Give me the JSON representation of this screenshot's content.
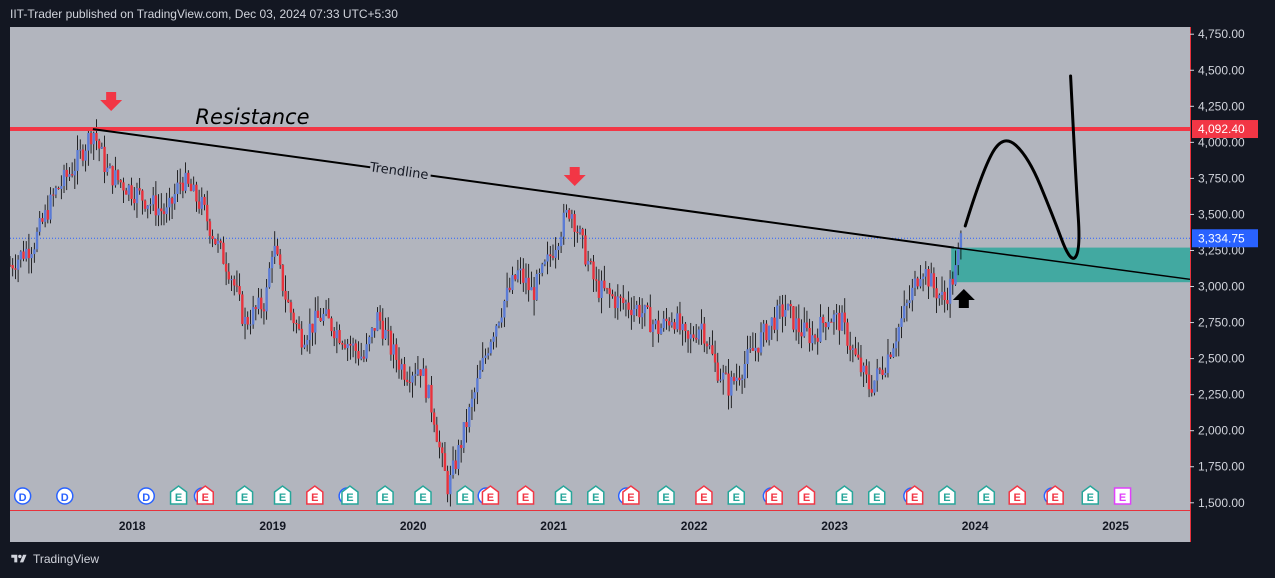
{
  "header": {
    "text": "IIT-Trader published on TradingView.com, Dec 03, 2024 07:33 UTC+5:30"
  },
  "footer": {
    "brand": "TradingView"
  },
  "colors": {
    "up": "#5b7bd5",
    "down": "#e8323c",
    "resistance": "#f23645",
    "trendline": "#000000",
    "zone": "#26a69a",
    "price_label_bg": "#2962ff",
    "res_label_bg": "#f23645",
    "bg": "#b2b5be"
  },
  "chart_data": {
    "type": "candlestick",
    "title": "",
    "x_tick_labels": [
      "2018",
      "2019",
      "2020",
      "2021",
      "2022",
      "2023",
      "2024",
      "2025"
    ],
    "x_ticks": [
      2018,
      2019,
      2020,
      2021,
      2022,
      2023,
      2024,
      2025
    ],
    "x_range": [
      2017.13,
      2025.53
    ],
    "y_range": [
      1450,
      4800
    ],
    "y_tick_labels": [
      "4,750.00",
      "4,500.00",
      "4,250.00",
      "4,000.00",
      "3,750.00",
      "3,500.00",
      "3,250.00",
      "3,000.00",
      "2,750.00",
      "2,500.00",
      "2,250.00",
      "2,000.00",
      "1,750.00",
      "1,500.00"
    ],
    "y_ticks": [
      4750,
      4500,
      4250,
      4000,
      3750,
      3500,
      3250,
      3000,
      2750,
      2500,
      2250,
      2000,
      1750,
      1500
    ],
    "price_path": [
      [
        2017.13,
        3150
      ],
      [
        2017.3,
        3300
      ],
      [
        2017.45,
        3650
      ],
      [
        2017.6,
        3850
      ],
      [
        2017.72,
        4092
      ],
      [
        2017.82,
        3800
      ],
      [
        2017.95,
        3700
      ],
      [
        2018.1,
        3600
      ],
      [
        2018.25,
        3500
      ],
      [
        2018.35,
        3750
      ],
      [
        2018.5,
        3550
      ],
      [
        2018.6,
        3300
      ],
      [
        2018.7,
        3100
      ],
      [
        2018.8,
        2750
      ],
      [
        2018.95,
        2900
      ],
      [
        2019.0,
        3300
      ],
      [
        2019.1,
        2900
      ],
      [
        2019.2,
        2650
      ],
      [
        2019.35,
        2800
      ],
      [
        2019.5,
        2650
      ],
      [
        2019.65,
        2500
      ],
      [
        2019.75,
        2800
      ],
      [
        2019.85,
        2550
      ],
      [
        2019.95,
        2400
      ],
      [
        2020.05,
        2450
      ],
      [
        2020.15,
        2100
      ],
      [
        2020.2,
        1800
      ],
      [
        2020.25,
        1600
      ],
      [
        2020.35,
        1950
      ],
      [
        2020.45,
        2300
      ],
      [
        2020.55,
        2650
      ],
      [
        2020.65,
        2900
      ],
      [
        2020.75,
        3100
      ],
      [
        2020.85,
        2950
      ],
      [
        2020.95,
        3150
      ],
      [
        2021.05,
        3400
      ],
      [
        2021.12,
        3550
      ],
      [
        2021.2,
        3300
      ],
      [
        2021.3,
        3000
      ],
      [
        2021.45,
        2900
      ],
      [
        2021.6,
        2850
      ],
      [
        2021.75,
        2700
      ],
      [
        2021.85,
        2800
      ],
      [
        2021.95,
        2600
      ],
      [
        2022.05,
        2750
      ],
      [
        2022.15,
        2450
      ],
      [
        2022.25,
        2300
      ],
      [
        2022.35,
        2450
      ],
      [
        2022.45,
        2600
      ],
      [
        2022.55,
        2750
      ],
      [
        2022.65,
        2850
      ],
      [
        2022.75,
        2700
      ],
      [
        2022.85,
        2650
      ],
      [
        2022.95,
        2800
      ],
      [
        2023.05,
        2750
      ],
      [
        2023.15,
        2500
      ],
      [
        2023.25,
        2300
      ],
      [
        2023.35,
        2450
      ],
      [
        2023.45,
        2700
      ],
      [
        2023.55,
        2950
      ],
      [
        2023.62,
        3150
      ],
      [
        2023.7,
        3000
      ],
      [
        2023.78,
        2900
      ],
      [
        2023.86,
        3100
      ],
      [
        2023.9,
        3335
      ]
    ],
    "last_price": 3334.75,
    "last_price_label": "3,334.75",
    "resistance": {
      "value": 4092.4,
      "label": "4,092.40",
      "text": "Resistance"
    },
    "trendline": {
      "label": "Trendline",
      "from": [
        2017.72,
        4092
      ],
      "to": [
        2023.85,
        3270
      ]
    },
    "extended_line": {
      "from": [
        2023.85,
        3270
      ],
      "to": [
        2025.53,
        3050
      ]
    },
    "demand_zone": {
      "x_from": 2023.83,
      "x_to": 2025.53,
      "y_from": 3030,
      "y_to": 3270
    },
    "arrows": [
      {
        "kind": "down",
        "x": 2017.85,
        "y": 4280,
        "color": "#f23645"
      },
      {
        "kind": "down",
        "x": 2021.15,
        "y": 3760,
        "color": "#f23645"
      },
      {
        "kind": "up",
        "x": 2023.92,
        "y": 2920,
        "color": "#000000"
      }
    ],
    "projection_path": [
      [
        2023.93,
        3420
      ],
      [
        2024.05,
        3800
      ],
      [
        2024.2,
        4060
      ],
      [
        2024.38,
        3900
      ],
      [
        2024.55,
        3500
      ],
      [
        2024.68,
        3160
      ],
      [
        2024.75,
        3250
      ],
      [
        2024.72,
        3700
      ],
      [
        2024.68,
        4460
      ]
    ],
    "event_markers": [
      {
        "x": 2017.22,
        "letter": "D",
        "type": "dividend"
      },
      {
        "x": 2017.52,
        "letter": "D",
        "type": "dividend"
      },
      {
        "x": 2018.1,
        "letter": "D",
        "type": "dividend"
      },
      {
        "x": 2018.33,
        "letter": "E",
        "type": "earnings"
      },
      {
        "x": 2018.5,
        "letter": "D",
        "type": "dividend"
      },
      {
        "x": 2018.52,
        "letter": "E",
        "type": "earnings_neg"
      },
      {
        "x": 2018.8,
        "letter": "E",
        "type": "earnings"
      },
      {
        "x": 2019.07,
        "letter": "E",
        "type": "earnings"
      },
      {
        "x": 2019.3,
        "letter": "E",
        "type": "earnings_neg"
      },
      {
        "x": 2019.53,
        "letter": "D",
        "type": "dividend"
      },
      {
        "x": 2019.55,
        "letter": "E",
        "type": "earnings"
      },
      {
        "x": 2019.8,
        "letter": "E",
        "type": "earnings"
      },
      {
        "x": 2020.07,
        "letter": "E",
        "type": "earnings"
      },
      {
        "x": 2020.37,
        "letter": "E",
        "type": "earnings"
      },
      {
        "x": 2020.52,
        "letter": "D",
        "type": "dividend"
      },
      {
        "x": 2020.55,
        "letter": "E",
        "type": "earnings_neg"
      },
      {
        "x": 2020.8,
        "letter": "E",
        "type": "earnings_neg"
      },
      {
        "x": 2021.07,
        "letter": "E",
        "type": "earnings"
      },
      {
        "x": 2021.3,
        "letter": "E",
        "type": "earnings"
      },
      {
        "x": 2021.52,
        "letter": "D",
        "type": "dividend"
      },
      {
        "x": 2021.55,
        "letter": "E",
        "type": "earnings_neg"
      },
      {
        "x": 2021.8,
        "letter": "E",
        "type": "earnings"
      },
      {
        "x": 2022.07,
        "letter": "E",
        "type": "earnings_neg"
      },
      {
        "x": 2022.3,
        "letter": "E",
        "type": "earnings"
      },
      {
        "x": 2022.55,
        "letter": "D",
        "type": "dividend"
      },
      {
        "x": 2022.57,
        "letter": "E",
        "type": "earnings_neg"
      },
      {
        "x": 2022.8,
        "letter": "E",
        "type": "earnings_neg"
      },
      {
        "x": 2023.07,
        "letter": "E",
        "type": "earnings"
      },
      {
        "x": 2023.3,
        "letter": "E",
        "type": "earnings"
      },
      {
        "x": 2023.55,
        "letter": "D",
        "type": "dividend"
      },
      {
        "x": 2023.57,
        "letter": "E",
        "type": "earnings_neg"
      },
      {
        "x": 2023.8,
        "letter": "E",
        "type": "earnings"
      },
      {
        "x": 2024.08,
        "letter": "E",
        "type": "earnings"
      },
      {
        "x": 2024.3,
        "letter": "E",
        "type": "earnings_neg"
      },
      {
        "x": 2024.55,
        "letter": "D",
        "type": "dividend"
      },
      {
        "x": 2024.57,
        "letter": "E",
        "type": "earnings_neg"
      },
      {
        "x": 2024.82,
        "letter": "E",
        "type": "earnings"
      },
      {
        "x": 2025.05,
        "letter": "E",
        "type": "earnings_future"
      }
    ]
  }
}
